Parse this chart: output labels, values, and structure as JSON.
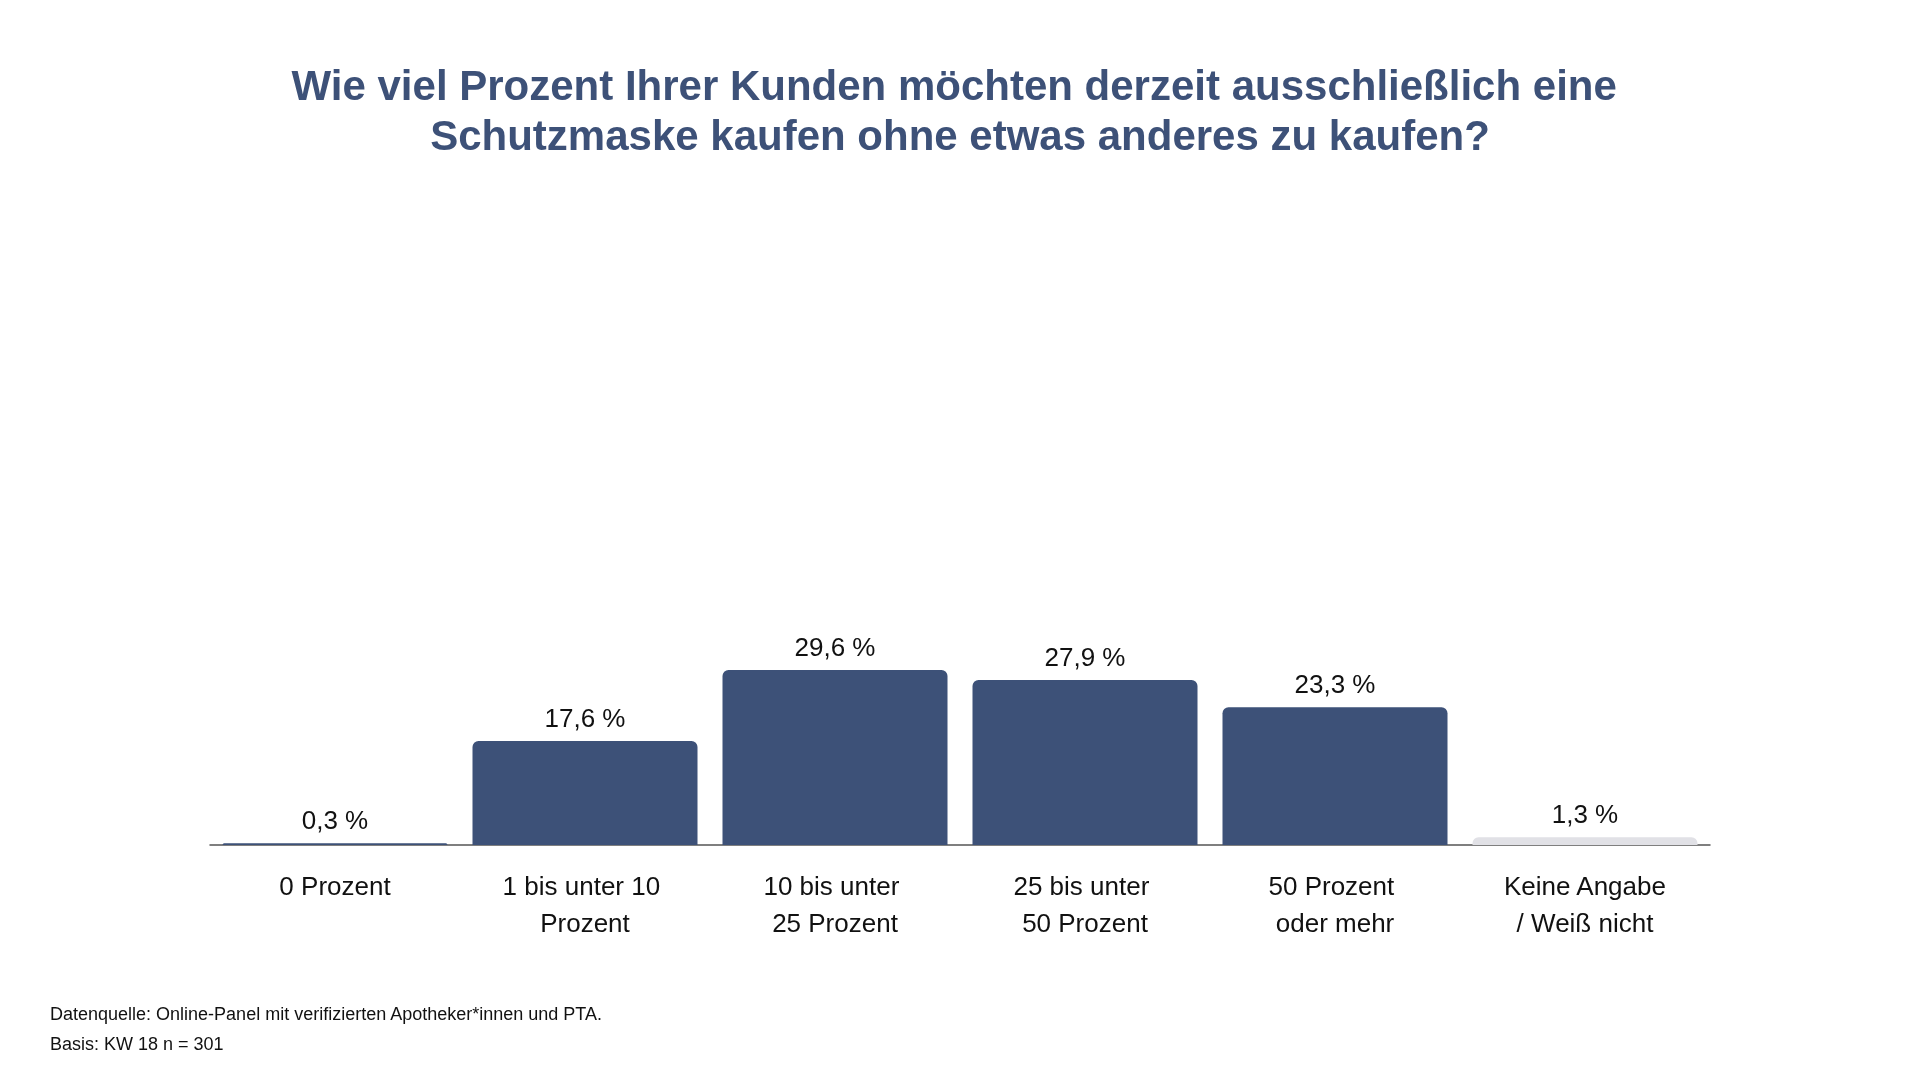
{
  "chart_data": {
    "type": "bar",
    "title": "Wie viel Prozent Ihrer Kunden möchten derzeit ausschließlich eine Schutzmaske kaufen ohne etwas anderes zu kaufen?",
    "categories": [
      "0 Prozent",
      "1 bis unter 10 Prozent",
      "10 bis unter 25 Prozent",
      "25 bis unter 50 Prozent",
      "50 Prozent oder mehr",
      "Keine Angabe/ Weiß nicht"
    ],
    "values": [
      0.3,
      17.6,
      29.6,
      27.9,
      23.3,
      1.3
    ],
    "value_labels": [
      "0,3 %",
      "17,6 %",
      "29,6 %",
      "27,9 %",
      "23,3 %",
      "1,3 %"
    ],
    "colors": [
      "#3d5178",
      "#3d5178",
      "#3d5178",
      "#3d5178",
      "#3d5178",
      "#e1e1e6"
    ],
    "annotations": [
      "Datenquelle: Online-Panel mit verifizierten Apotheker*innen und PTA.",
      "Basis: KW 18 n = 301"
    ],
    "grid": false
  }
}
